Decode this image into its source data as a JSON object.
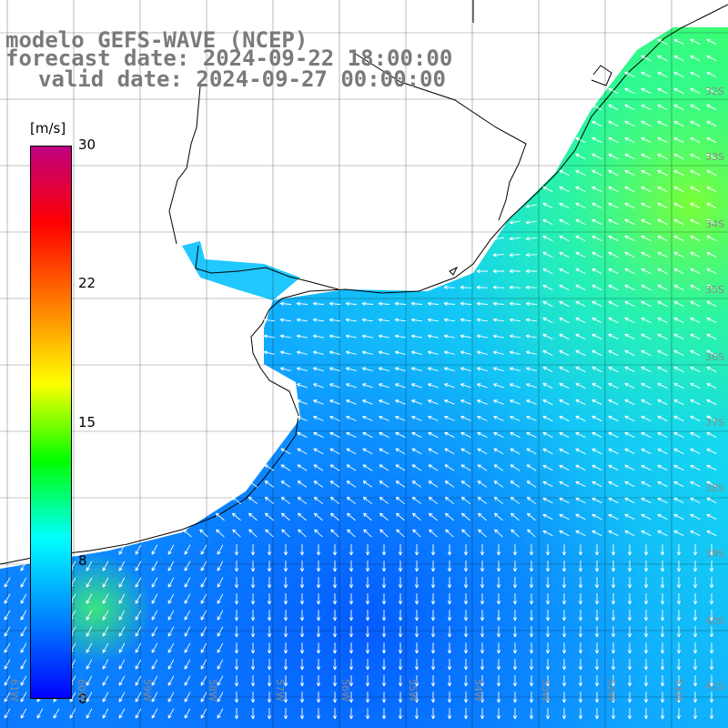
{
  "header": {
    "model": "modelo GEFS-WAVE (NCEP)",
    "forecast_date": "forecast date: 2024-09-22 18:00:00",
    "valid_date": "valid date: 2024-09-27 00:00:00"
  },
  "colorbar": {
    "unit": "[m/s]",
    "ticks": [
      "30",
      "22",
      "15",
      "8",
      "0"
    ],
    "colors": [
      "#0000ff",
      "#0080ff",
      "#00ffff",
      "#00ff00",
      "#ffff00",
      "#ff8000",
      "#ff0000",
      "#c00080"
    ]
  },
  "grid": {
    "lat_labels": [
      "32S",
      "33S",
      "34S",
      "35S",
      "36S",
      "37S",
      "38S",
      "39S",
      "40S",
      "41S"
    ],
    "lon_labels": [
      "61W",
      "60W",
      "59W",
      "58W",
      "57W",
      "56W",
      "55W",
      "54W",
      "53W",
      "52W",
      "51W"
    ]
  }
}
